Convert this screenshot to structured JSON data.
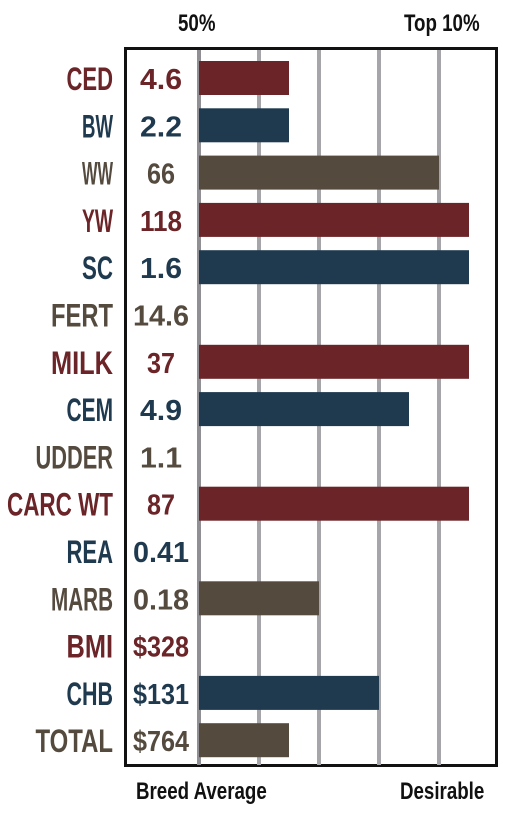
{
  "header": {
    "left_label": "50%",
    "right_label": "Top 10%"
  },
  "footer": {
    "left_label": "Breed Average",
    "right_label": "Desirable"
  },
  "colors": {
    "maroon": "#6b2427",
    "navy": "#1f3a4f",
    "brown": "#544a3e",
    "grid": "#a6a6aa"
  },
  "chart_data": {
    "type": "bar",
    "orientation": "horizontal",
    "categories": [
      "CED",
      "BW",
      "WW",
      "YW",
      "SC",
      "FERT",
      "MILK",
      "CEM",
      "UDDER",
      "CARC WT",
      "REA",
      "MARB",
      "BMI",
      "CHB",
      "TOTAL"
    ],
    "value_labels": [
      "4.6",
      "2.2",
      "66",
      "118",
      "1.6",
      "14.6",
      "37",
      "4.9",
      "1.1",
      "87",
      "0.41",
      "0.18",
      "$328",
      "$131",
      "$764"
    ],
    "values": [
      1.5,
      1.5,
      4,
      4.5,
      4.5,
      0,
      4.5,
      3.5,
      0,
      4.5,
      0,
      2,
      0,
      3,
      1.5
    ],
    "row_colors": [
      "maroon",
      "navy",
      "brown",
      "maroon",
      "navy",
      "brown",
      "maroon",
      "navy",
      "brown",
      "maroon",
      "navy",
      "brown",
      "maroon",
      "navy",
      "brown"
    ],
    "xlim": [
      0,
      4.5
    ],
    "grid": true
  }
}
